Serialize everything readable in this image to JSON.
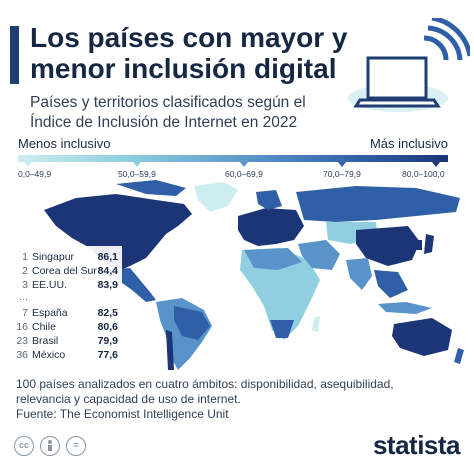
{
  "header": {
    "title": "Los países con mayor y menor inclusión digital",
    "subtitle": "Países y territorios clasificados según el Índice de Inclusión de Internet en 2022"
  },
  "legend": {
    "left_label": "Menos inclusivo",
    "right_label": "Más inclusivo",
    "ranges": [
      "0,0–49,9",
      "50,0–59,9",
      "60,0–69,9",
      "70,0–79,9",
      "80,0–100,0"
    ]
  },
  "ranking": [
    {
      "rank": "1",
      "country": "Singapur",
      "score": "86,1"
    },
    {
      "rank": "2",
      "country": "Corea del Sur",
      "score": "84,4"
    },
    {
      "rank": "3",
      "country": "EE.UU.",
      "score": "83,9"
    },
    {
      "rank": "...",
      "country": "",
      "score": ""
    },
    {
      "rank": "7",
      "country": "España",
      "score": "82,5"
    },
    {
      "rank": "16",
      "country": "Chile",
      "score": "80,6"
    },
    {
      "rank": "23",
      "country": "Brasil",
      "score": "79,9"
    },
    {
      "rank": "36",
      "country": "México",
      "score": "77,6"
    }
  ],
  "footnote": {
    "line1": "100 países analizados en cuatro ámbitos: disponibilidad, asequibilidad,",
    "line2": "relevancia y capacidad de uso de internet.",
    "source": "Fuente: The Economist Intelligence Unit"
  },
  "brand": "statista",
  "license_icons": [
    "cc-icon",
    "person-icon",
    "equals-icon"
  ],
  "colors": {
    "darkest": "#1c3576",
    "dark": "#2f5fa6",
    "medium": "#5a93c9",
    "light": "#8fcfe0",
    "lightest": "#cdeef1",
    "accent_bar": "#1f3f74"
  }
}
